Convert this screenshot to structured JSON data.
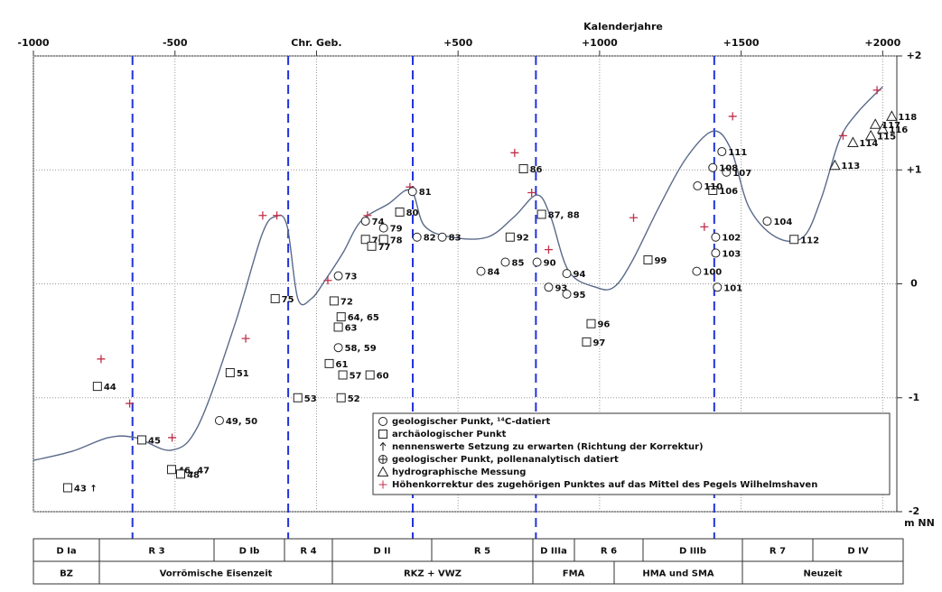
{
  "chart_data": {
    "type": "line",
    "x_axis_title": "Kalenderjahre",
    "y_axis_title": "m NN",
    "xlim": [
      -1000,
      2050
    ],
    "ylim": [
      -2,
      2
    ],
    "xticks": [
      -1000,
      -500,
      {
        "value": 0,
        "label": "Chr. Geb."
      },
      {
        "value": 500,
        "label": "+500"
      },
      {
        "value": 1000,
        "label": "+1000"
      },
      {
        "value": 1500,
        "label": "+1500"
      },
      {
        "value": 2000,
        "label": "+2000"
      }
    ],
    "yticks": [
      {
        "value": 2,
        "label": "+2"
      },
      {
        "value": 1,
        "label": "+1"
      },
      0,
      -1,
      -2
    ],
    "grid": true,
    "boundary_lines": {
      "color": "#2233dd",
      "years": [
        -650,
        -100,
        340,
        775,
        1405
      ]
    },
    "curve": {
      "color": "#5a6a8a",
      "x": [
        -1000,
        -863,
        -735,
        -640,
        -512,
        -417,
        -289,
        -193,
        -145,
        -104,
        -66,
        -18,
        30,
        93,
        157,
        253,
        333,
        381,
        476,
        604,
        699,
        779,
        827,
        891,
        987,
        1050,
        1113,
        1209,
        1305,
        1400,
        1464,
        1528,
        1623,
        1719,
        1783,
        1847,
        1910,
        2000
      ],
      "y": [
        -1.55,
        -1.47,
        -1.35,
        -1.35,
        -1.46,
        -1.24,
        -0.36,
        0.43,
        0.59,
        0.51,
        -0.13,
        -0.13,
        0.03,
        0.27,
        0.55,
        0.7,
        0.82,
        0.51,
        0.41,
        0.41,
        0.59,
        0.78,
        0.59,
        0.11,
        -0.03,
        -0.03,
        0.19,
        0.67,
        1.1,
        1.34,
        1.18,
        0.67,
        0.41,
        0.41,
        0.75,
        1.26,
        1.5,
        1.73
      ]
    },
    "points": [
      {
        "label": "44",
        "x": -774,
        "y": -0.9,
        "marker": "square"
      },
      {
        "label": "43 ↑",
        "x": -879,
        "y": -1.79,
        "marker": "square"
      },
      {
        "label": "45",
        "x": -617,
        "y": -1.37,
        "marker": "square"
      },
      {
        "label": "46, 47",
        "x": -512,
        "y": -1.63,
        "marker": "square"
      },
      {
        "label": "48",
        "x": -480,
        "y": -1.67,
        "marker": "square"
      },
      {
        "label": "49, 50",
        "x": -343,
        "y": -1.2,
        "marker": "circle"
      },
      {
        "label": "51",
        "x": -305,
        "y": -0.78,
        "marker": "square"
      },
      {
        "label": "53",
        "x": -66,
        "y": -1.0,
        "marker": "square"
      },
      {
        "label": "75",
        "x": -146,
        "y": -0.13,
        "marker": "square"
      },
      {
        "label": "73",
        "x": 77,
        "y": 0.07,
        "marker": "circle"
      },
      {
        "label": "72",
        "x": 62,
        "y": -0.15,
        "marker": "square"
      },
      {
        "label": "64, 65",
        "x": 87,
        "y": -0.29,
        "marker": "square"
      },
      {
        "label": "63",
        "x": 77,
        "y": -0.38,
        "marker": "square"
      },
      {
        "label": "58, 59",
        "x": 77,
        "y": -0.56,
        "marker": "circle"
      },
      {
        "label": "61",
        "x": 45,
        "y": -0.7,
        "marker": "square"
      },
      {
        "label": "57",
        "x": 93,
        "y": -0.8,
        "marker": "square"
      },
      {
        "label": "60",
        "x": 189,
        "y": -0.8,
        "marker": "square"
      },
      {
        "label": "52",
        "x": 87,
        "y": -1.0,
        "marker": "square"
      },
      {
        "label": "74",
        "x": 173,
        "y": 0.55,
        "marker": "circle"
      },
      {
        "label": "76",
        "x": 173,
        "y": 0.39,
        "marker": "square"
      },
      {
        "label": "77",
        "x": 195,
        "y": 0.33,
        "marker": "square"
      },
      {
        "label": "78",
        "x": 237,
        "y": 0.39,
        "marker": "square"
      },
      {
        "label": "79",
        "x": 237,
        "y": 0.49,
        "marker": "circle"
      },
      {
        "label": "80",
        "x": 294,
        "y": 0.63,
        "marker": "square"
      },
      {
        "label": "81",
        "x": 339,
        "y": 0.81,
        "marker": "circle"
      },
      {
        "label": "82",
        "x": 355,
        "y": 0.41,
        "marker": "circle"
      },
      {
        "label": "83",
        "x": 444,
        "y": 0.41,
        "marker": "circle"
      },
      {
        "label": "84",
        "x": 581,
        "y": 0.11,
        "marker": "circle"
      },
      {
        "label": "85",
        "x": 667,
        "y": 0.19,
        "marker": "circle"
      },
      {
        "label": "86",
        "x": 731,
        "y": 1.01,
        "marker": "square"
      },
      {
        "label": "87, 88",
        "x": 795,
        "y": 0.61,
        "marker": "square"
      },
      {
        "label": "92",
        "x": 684,
        "y": 0.41,
        "marker": "square"
      },
      {
        "label": "90",
        "x": 779,
        "y": 0.19,
        "marker": "circle"
      },
      {
        "label": "93",
        "x": 820,
        "y": -0.03,
        "marker": "circle"
      },
      {
        "label": "94",
        "x": 884,
        "y": 0.09,
        "marker": "circle"
      },
      {
        "label": "95",
        "x": 884,
        "y": -0.09,
        "marker": "circle"
      },
      {
        "label": "96",
        "x": 970,
        "y": -0.35,
        "marker": "square"
      },
      {
        "label": "97",
        "x": 954,
        "y": -0.51,
        "marker": "square"
      },
      {
        "label": "99",
        "x": 1171,
        "y": 0.21,
        "marker": "square"
      },
      {
        "label": "100",
        "x": 1343,
        "y": 0.11,
        "marker": "circle"
      },
      {
        "label": "101",
        "x": 1416,
        "y": -0.03,
        "marker": "circle"
      },
      {
        "label": "102",
        "x": 1410,
        "y": 0.41,
        "marker": "circle"
      },
      {
        "label": "103",
        "x": 1410,
        "y": 0.27,
        "marker": "circle"
      },
      {
        "label": "104",
        "x": 1592,
        "y": 0.55,
        "marker": "circle"
      },
      {
        "label": "106",
        "x": 1400,
        "y": 0.82,
        "marker": "square"
      },
      {
        "label": "107",
        "x": 1448,
        "y": 0.98,
        "marker": "circle"
      },
      {
        "label": "108",
        "x": 1400,
        "y": 1.02,
        "marker": "circle"
      },
      {
        "label": "110",
        "x": 1346,
        "y": 0.86,
        "marker": "circle"
      },
      {
        "label": "111",
        "x": 1432,
        "y": 1.16,
        "marker": "circle"
      },
      {
        "label": "112",
        "x": 1687,
        "y": 0.39,
        "marker": "square"
      },
      {
        "label": "113",
        "x": 1831,
        "y": 1.04,
        "marker": "triangle"
      },
      {
        "label": "114",
        "x": 1895,
        "y": 1.24,
        "marker": "triangle"
      },
      {
        "label": "115",
        "x": 1958,
        "y": 1.3,
        "marker": "triangle"
      },
      {
        "label": "116",
        "x": 2000,
        "y": 1.36,
        "marker": "triangle"
      },
      {
        "label": "117",
        "x": 1974,
        "y": 1.4,
        "marker": "triangle"
      },
      {
        "label": "118",
        "x": 2032,
        "y": 1.47,
        "marker": "triangle"
      }
    ],
    "corrections": {
      "color": "#c0304a",
      "x": [
        -761,
        -660,
        -510,
        -250,
        -190,
        -140,
        40,
        180,
        330,
        700,
        760,
        820,
        1120,
        1370,
        1470,
        1860,
        1980
      ],
      "y": [
        -0.66,
        -1.05,
        -1.35,
        -0.48,
        0.6,
        0.6,
        0.03,
        0.6,
        0.85,
        1.15,
        0.8,
        0.3,
        0.58,
        0.5,
        1.47,
        1.3,
        1.7
      ]
    },
    "legend": [
      {
        "marker": "circle",
        "label": "geologischer Punkt, ¹⁴C-datiert"
      },
      {
        "marker": "square",
        "label": "archäologischer Punkt"
      },
      {
        "marker": "arrow",
        "label": "nennenswerte Setzung zu erwarten (Richtung der Korrektur)"
      },
      {
        "marker": "crosscircle",
        "label": "geologischer Punkt, pollenanalytisch datiert"
      },
      {
        "marker": "triangle",
        "label": "hydrographische Messung"
      },
      {
        "marker": "plus",
        "label": "Höhenkorrektur des zugehörigen Punktes auf das Mittel des Pegels Wilhelmshaven"
      }
    ],
    "periods": {
      "row1": [
        "D Ia",
        "R 3",
        "D Ib",
        "R 4",
        "D II",
        "R 5",
        "D IIIa",
        "R 6",
        "D IIIb",
        "R 7",
        "D IV"
      ],
      "row2": [
        "BZ",
        "Vorrömische Eisenzeit",
        "RKZ + VWZ",
        "FMA",
        "HMA und SMA",
        "Neuzeit"
      ]
    }
  }
}
